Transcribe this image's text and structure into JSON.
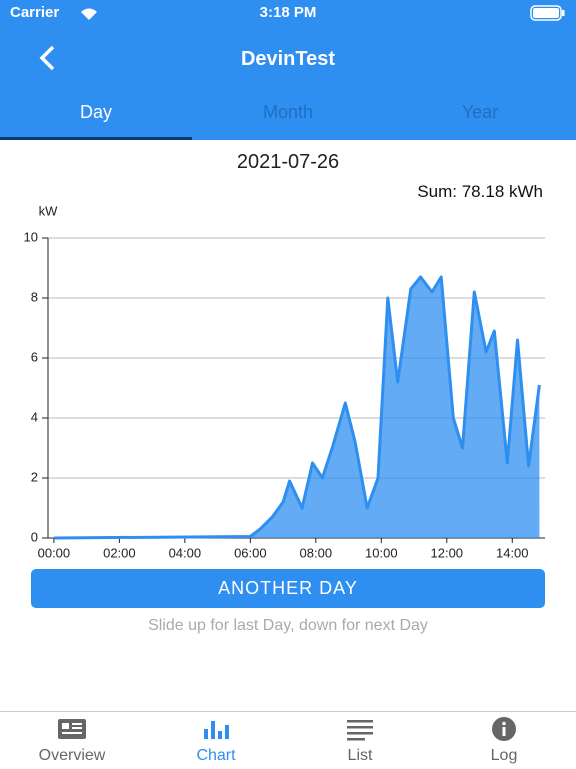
{
  "status_bar": {
    "carrier": "Carrier",
    "time": "3:18 PM"
  },
  "header": {
    "title": "DevinTest"
  },
  "tabs": [
    "Day",
    "Month",
    "Year"
  ],
  "date": "2021-07-26",
  "sum": "Sum: 78.18 kWh",
  "button": "ANOTHER DAY",
  "hint": "Slide up for last Day, down for next Day",
  "nav": [
    "Overview",
    "Chart",
    "List",
    "Log"
  ],
  "chart_data": {
    "type": "area",
    "y_label": "kW",
    "color": "#2f8ff0",
    "grid": true,
    "x": [
      0,
      6.0,
      6.3,
      6.67,
      7.0,
      7.2,
      7.58,
      7.9,
      8.2,
      8.5,
      8.9,
      9.2,
      9.57,
      9.9,
      10.2,
      10.5,
      10.9,
      11.2,
      11.55,
      11.83,
      12.2,
      12.48,
      12.84,
      13.2,
      13.45,
      13.85,
      14.16,
      14.5,
      14.83
    ],
    "values": [
      0,
      0.05,
      0.3,
      0.7,
      1.2,
      1.9,
      1.0,
      2.5,
      2.0,
      3.0,
      4.5,
      3.2,
      1.0,
      2.0,
      8.0,
      5.2,
      8.3,
      8.7,
      8.2,
      8.7,
      4.0,
      3.0,
      8.2,
      6.2,
      6.9,
      2.5,
      6.6,
      2.4,
      5.1
    ],
    "xlim": [
      -0.18,
      15.0
    ],
    "xticks": [
      {
        "value": 0,
        "label": "00:00"
      },
      {
        "value": 2,
        "label": "02:00"
      },
      {
        "value": 4,
        "label": "04:00"
      },
      {
        "value": 6,
        "label": "06:00"
      },
      {
        "value": 8,
        "label": "08:00"
      },
      {
        "value": 10,
        "label": "10:00"
      },
      {
        "value": 12,
        "label": "12:00"
      },
      {
        "value": 14,
        "label": "14:00"
      }
    ],
    "ylim": [
      0,
      10
    ],
    "yticks": [
      0,
      2,
      4,
      6,
      8,
      10
    ]
  }
}
